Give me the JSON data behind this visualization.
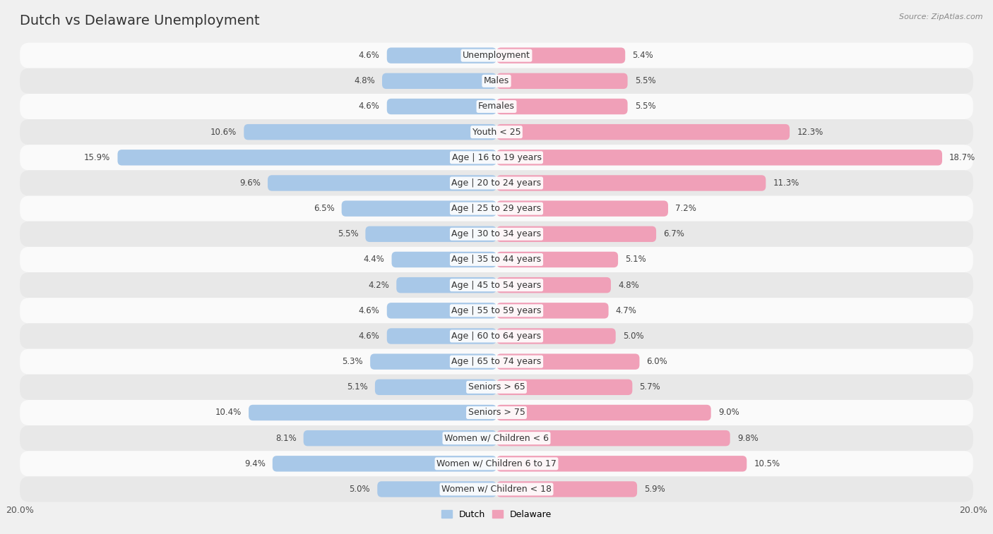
{
  "title": "Dutch vs Delaware Unemployment",
  "source": "Source: ZipAtlas.com",
  "categories": [
    "Unemployment",
    "Males",
    "Females",
    "Youth < 25",
    "Age | 16 to 19 years",
    "Age | 20 to 24 years",
    "Age | 25 to 29 years",
    "Age | 30 to 34 years",
    "Age | 35 to 44 years",
    "Age | 45 to 54 years",
    "Age | 55 to 59 years",
    "Age | 60 to 64 years",
    "Age | 65 to 74 years",
    "Seniors > 65",
    "Seniors > 75",
    "Women w/ Children < 6",
    "Women w/ Children 6 to 17",
    "Women w/ Children < 18"
  ],
  "dutch_values": [
    4.6,
    4.8,
    4.6,
    10.6,
    15.9,
    9.6,
    6.5,
    5.5,
    4.4,
    4.2,
    4.6,
    4.6,
    5.3,
    5.1,
    10.4,
    8.1,
    9.4,
    5.0
  ],
  "delaware_values": [
    5.4,
    5.5,
    5.5,
    12.3,
    18.7,
    11.3,
    7.2,
    6.7,
    5.1,
    4.8,
    4.7,
    5.0,
    6.0,
    5.7,
    9.0,
    9.8,
    10.5,
    5.9
  ],
  "dutch_color": "#a8c8e8",
  "delaware_color": "#f0a0b8",
  "dutch_label": "Dutch",
  "delaware_label": "Delaware",
  "max_val": 20.0,
  "bar_height": 0.62,
  "bg_color": "#f0f0f0",
  "row_light_color": "#fafafa",
  "row_dark_color": "#e8e8e8",
  "title_fontsize": 14,
  "label_fontsize": 9,
  "value_fontsize": 8.5
}
